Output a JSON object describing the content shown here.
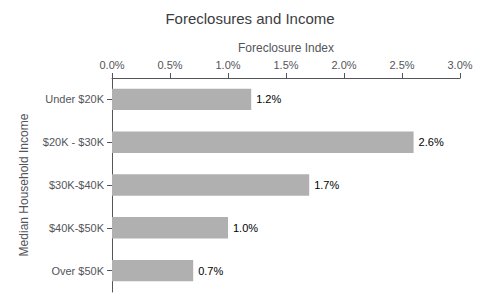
{
  "chart_data": {
    "type": "bar",
    "orientation": "horizontal",
    "title": "Foreclosures and Income",
    "xlabel": "Foreclosure Index",
    "ylabel": "Median Household Income",
    "categories": [
      "Under $20K",
      "$20K - $30K",
      "$30K-$40K",
      "$40K-$50K",
      "Over $50K"
    ],
    "values": [
      1.2,
      2.6,
      1.7,
      1.0,
      0.7
    ],
    "value_labels": [
      "1.2%",
      "2.6%",
      "1.7%",
      "1.0%",
      "0.7%"
    ],
    "data_labels": true,
    "color": "#b0b0b0",
    "xlim": [
      0.0,
      3.0
    ],
    "xticks": [
      {
        "value": 0.0,
        "label": "0.0%"
      },
      {
        "value": 0.5,
        "label": "0.5%"
      },
      {
        "value": 1.0,
        "label": "1.0%"
      },
      {
        "value": 1.5,
        "label": "1.5%"
      },
      {
        "value": 2.0,
        "label": "2.0%"
      },
      {
        "value": 2.5,
        "label": "2.5%"
      },
      {
        "value": 3.0,
        "label": "3.0%"
      }
    ],
    "grid": false
  }
}
